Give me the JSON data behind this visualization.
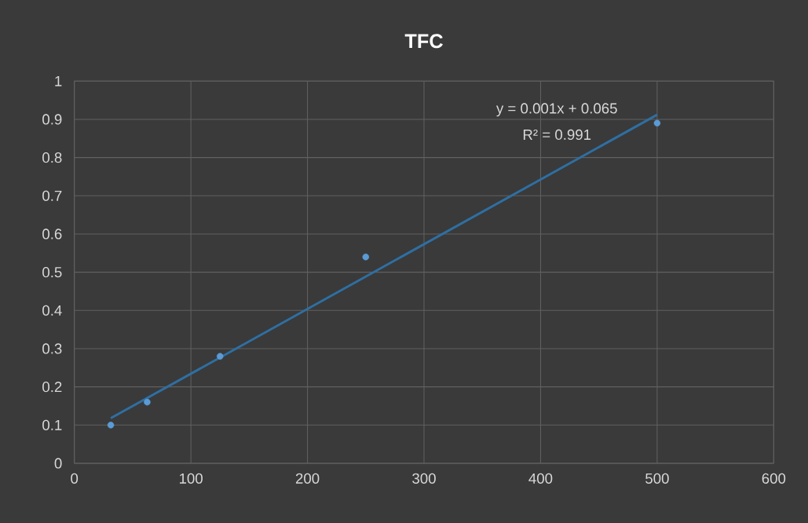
{
  "chart_data": {
    "type": "scatter",
    "title": "TFC",
    "series": [
      {
        "color": "#5b9bd5",
        "x": [
          31.25,
          62.5,
          125,
          250,
          500
        ],
        "values": [
          0.1,
          0.16,
          0.28,
          0.54,
          0.89
        ],
        "marker": "circle"
      },
      {
        "type": "line",
        "color": "#2e6fa3",
        "x": [
          31.25,
          500
        ],
        "values": [
          0.118,
          0.912
        ],
        "marker": "none",
        "line_style": "solid"
      }
    ],
    "annotations": [
      "y = 0.001x + 0.065",
      "R² = 0.991"
    ],
    "xlim": [
      0,
      600
    ],
    "xticks": [
      0,
      100,
      200,
      300,
      400,
      500,
      600
    ],
    "ylim": [
      0,
      1
    ],
    "yticks": [
      0,
      0.1,
      0.2,
      0.3,
      0.4,
      0.5,
      0.6,
      0.7,
      0.8,
      0.9,
      1
    ],
    "grid": true
  }
}
